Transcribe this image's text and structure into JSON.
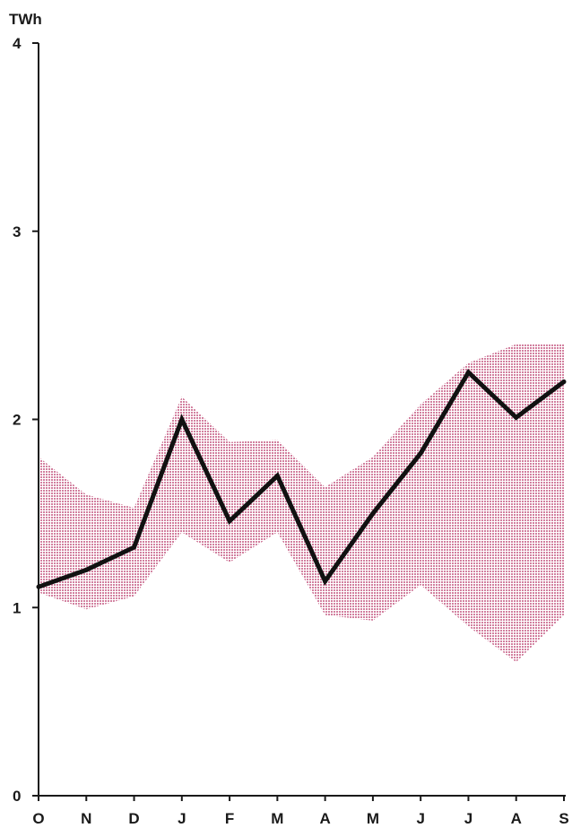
{
  "chart_data": {
    "type": "area",
    "ylabel": "TWh",
    "xlabel": "",
    "title": "",
    "categories": [
      "O",
      "N",
      "D",
      "J",
      "F",
      "M",
      "A",
      "M",
      "J",
      "J",
      "A",
      "S"
    ],
    "ylim": [
      0,
      4
    ],
    "yticks": [
      "0",
      "1",
      "2",
      "3",
      "4"
    ],
    "grid": false,
    "legend": "none",
    "series": [
      {
        "type": "band",
        "upper": [
          1.8,
          1.6,
          1.53,
          2.12,
          1.88,
          1.89,
          1.64,
          1.8,
          2.08,
          2.3,
          2.4,
          2.4
        ],
        "lower": [
          1.08,
          0.99,
          1.06,
          1.4,
          1.24,
          1.4,
          0.96,
          0.93,
          1.12,
          0.9,
          0.71,
          0.96
        ]
      },
      {
        "type": "line",
        "values": [
          1.11,
          1.2,
          1.32,
          2.0,
          1.46,
          1.7,
          1.14,
          1.5,
          1.82,
          2.25,
          2.01,
          2.2
        ]
      }
    ],
    "colors": {
      "band": "#d9a0b8",
      "line": "#111111",
      "axis": "#1a1a1a"
    }
  }
}
